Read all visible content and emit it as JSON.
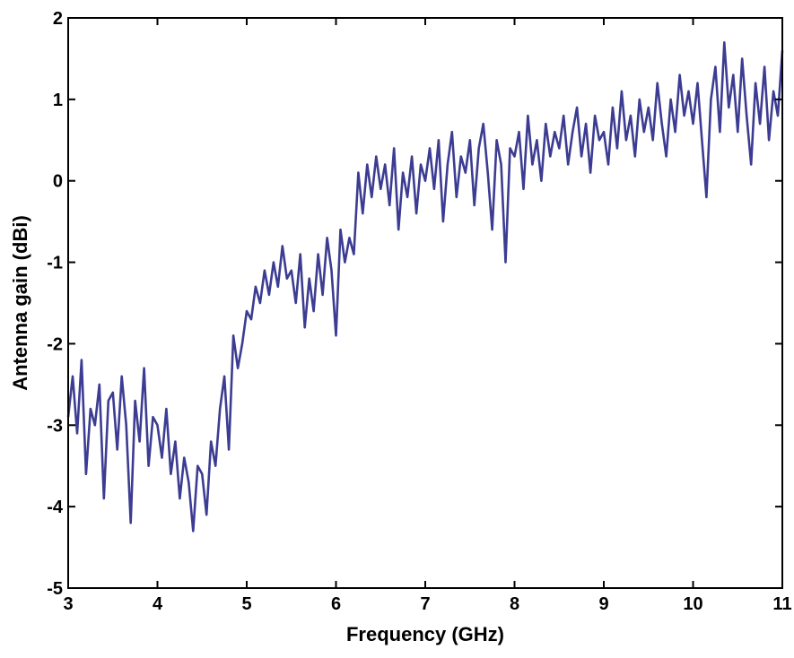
{
  "chart_data": {
    "type": "line",
    "x_label": "Frequency (GHz)",
    "y_label": "Antenna gain (dBi)",
    "color": "#3c3c92",
    "xlim": [
      3,
      11
    ],
    "ylim": [
      -5,
      2
    ],
    "xticks": [
      3,
      4,
      5,
      6,
      7,
      8,
      9,
      10,
      11
    ],
    "yticks": [
      -5,
      -4,
      -3,
      -2,
      -1,
      0,
      1,
      2
    ],
    "x": [
      3,
      3.05,
      3.1,
      3.15,
      3.2,
      3.25,
      3.3,
      3.35,
      3.4,
      3.45,
      3.5,
      3.55,
      3.6,
      3.65,
      3.7,
      3.75,
      3.8,
      3.85,
      3.9,
      3.95,
      4,
      4.05,
      4.1,
      4.15,
      4.2,
      4.25,
      4.3,
      4.35,
      4.4,
      4.45,
      4.5,
      4.55,
      4.6,
      4.65,
      4.7,
      4.75,
      4.8,
      4.85,
      4.9,
      4.95,
      5,
      5.05,
      5.1,
      5.15,
      5.2,
      5.25,
      5.3,
      5.35,
      5.4,
      5.45,
      5.5,
      5.55,
      5.6,
      5.65,
      5.7,
      5.75,
      5.8,
      5.85,
      5.9,
      5.95,
      6,
      6.05,
      6.1,
      6.15,
      6.2,
      6.25,
      6.3,
      6.35,
      6.4,
      6.45,
      6.5,
      6.55,
      6.6,
      6.65,
      6.7,
      6.75,
      6.8,
      6.85,
      6.9,
      6.95,
      7,
      7.05,
      7.1,
      7.15,
      7.2,
      7.25,
      7.3,
      7.35,
      7.4,
      7.45,
      7.5,
      7.55,
      7.6,
      7.65,
      7.7,
      7.75,
      7.8,
      7.85,
      7.9,
      7.95,
      8,
      8.05,
      8.1,
      8.15,
      8.2,
      8.25,
      8.3,
      8.35,
      8.4,
      8.45,
      8.5,
      8.55,
      8.6,
      8.65,
      8.7,
      8.75,
      8.8,
      8.85,
      8.9,
      8.95,
      9,
      9.05,
      9.1,
      9.15,
      9.2,
      9.25,
      9.3,
      9.35,
      9.4,
      9.45,
      9.5,
      9.55,
      9.6,
      9.65,
      9.7,
      9.75,
      9.8,
      9.85,
      9.9,
      9.95,
      10,
      10.05,
      10.1,
      10.15,
      10.2,
      10.25,
      10.3,
      10.35,
      10.4,
      10.45,
      10.5,
      10.55,
      10.6,
      10.65,
      10.7,
      10.75,
      10.8,
      10.85,
      10.9,
      10.95,
      11
    ],
    "values": [
      -2.9,
      -2.4,
      -3.1,
      -2.2,
      -3.6,
      -2.8,
      -3.0,
      -2.5,
      -3.9,
      -2.7,
      -2.6,
      -3.3,
      -2.4,
      -3.0,
      -4.2,
      -2.7,
      -3.2,
      -2.3,
      -3.5,
      -2.9,
      -3.0,
      -3.4,
      -2.8,
      -3.6,
      -3.2,
      -3.9,
      -3.4,
      -3.7,
      -4.3,
      -3.5,
      -3.6,
      -4.1,
      -3.2,
      -3.5,
      -2.8,
      -2.4,
      -3.3,
      -1.9,
      -2.3,
      -2.0,
      -1.6,
      -1.7,
      -1.3,
      -1.5,
      -1.1,
      -1.4,
      -1.0,
      -1.3,
      -0.8,
      -1.2,
      -1.1,
      -1.5,
      -0.9,
      -1.8,
      -1.2,
      -1.6,
      -0.9,
      -1.4,
      -0.7,
      -1.1,
      -1.9,
      -0.6,
      -1.0,
      -0.7,
      -0.9,
      0.1,
      -0.4,
      0.2,
      -0.2,
      0.3,
      -0.1,
      0.2,
      -0.3,
      0.4,
      -0.6,
      0.1,
      -0.2,
      0.3,
      -0.4,
      0.2,
      0.0,
      0.4,
      -0.1,
      0.5,
      -0.5,
      0.2,
      0.6,
      -0.2,
      0.3,
      0.1,
      0.5,
      -0.3,
      0.4,
      0.7,
      0.1,
      -0.6,
      0.5,
      0.2,
      -1.0,
      0.4,
      0.3,
      0.6,
      -0.1,
      0.8,
      0.2,
      0.5,
      0.0,
      0.7,
      0.3,
      0.6,
      0.4,
      0.8,
      0.2,
      0.6,
      0.9,
      0.3,
      0.7,
      0.1,
      0.8,
      0.5,
      0.6,
      0.2,
      0.9,
      0.4,
      1.1,
      0.5,
      0.8,
      0.3,
      1.0,
      0.6,
      0.9,
      0.5,
      1.2,
      0.7,
      0.3,
      1.0,
      0.6,
      1.3,
      0.8,
      1.1,
      0.7,
      1.2,
      0.5,
      -0.2,
      1.0,
      1.4,
      0.6,
      1.7,
      0.9,
      1.3,
      0.6,
      1.5,
      0.8,
      0.2,
      1.2,
      0.7,
      1.4,
      0.5,
      1.1,
      0.8,
      1.6
    ]
  }
}
